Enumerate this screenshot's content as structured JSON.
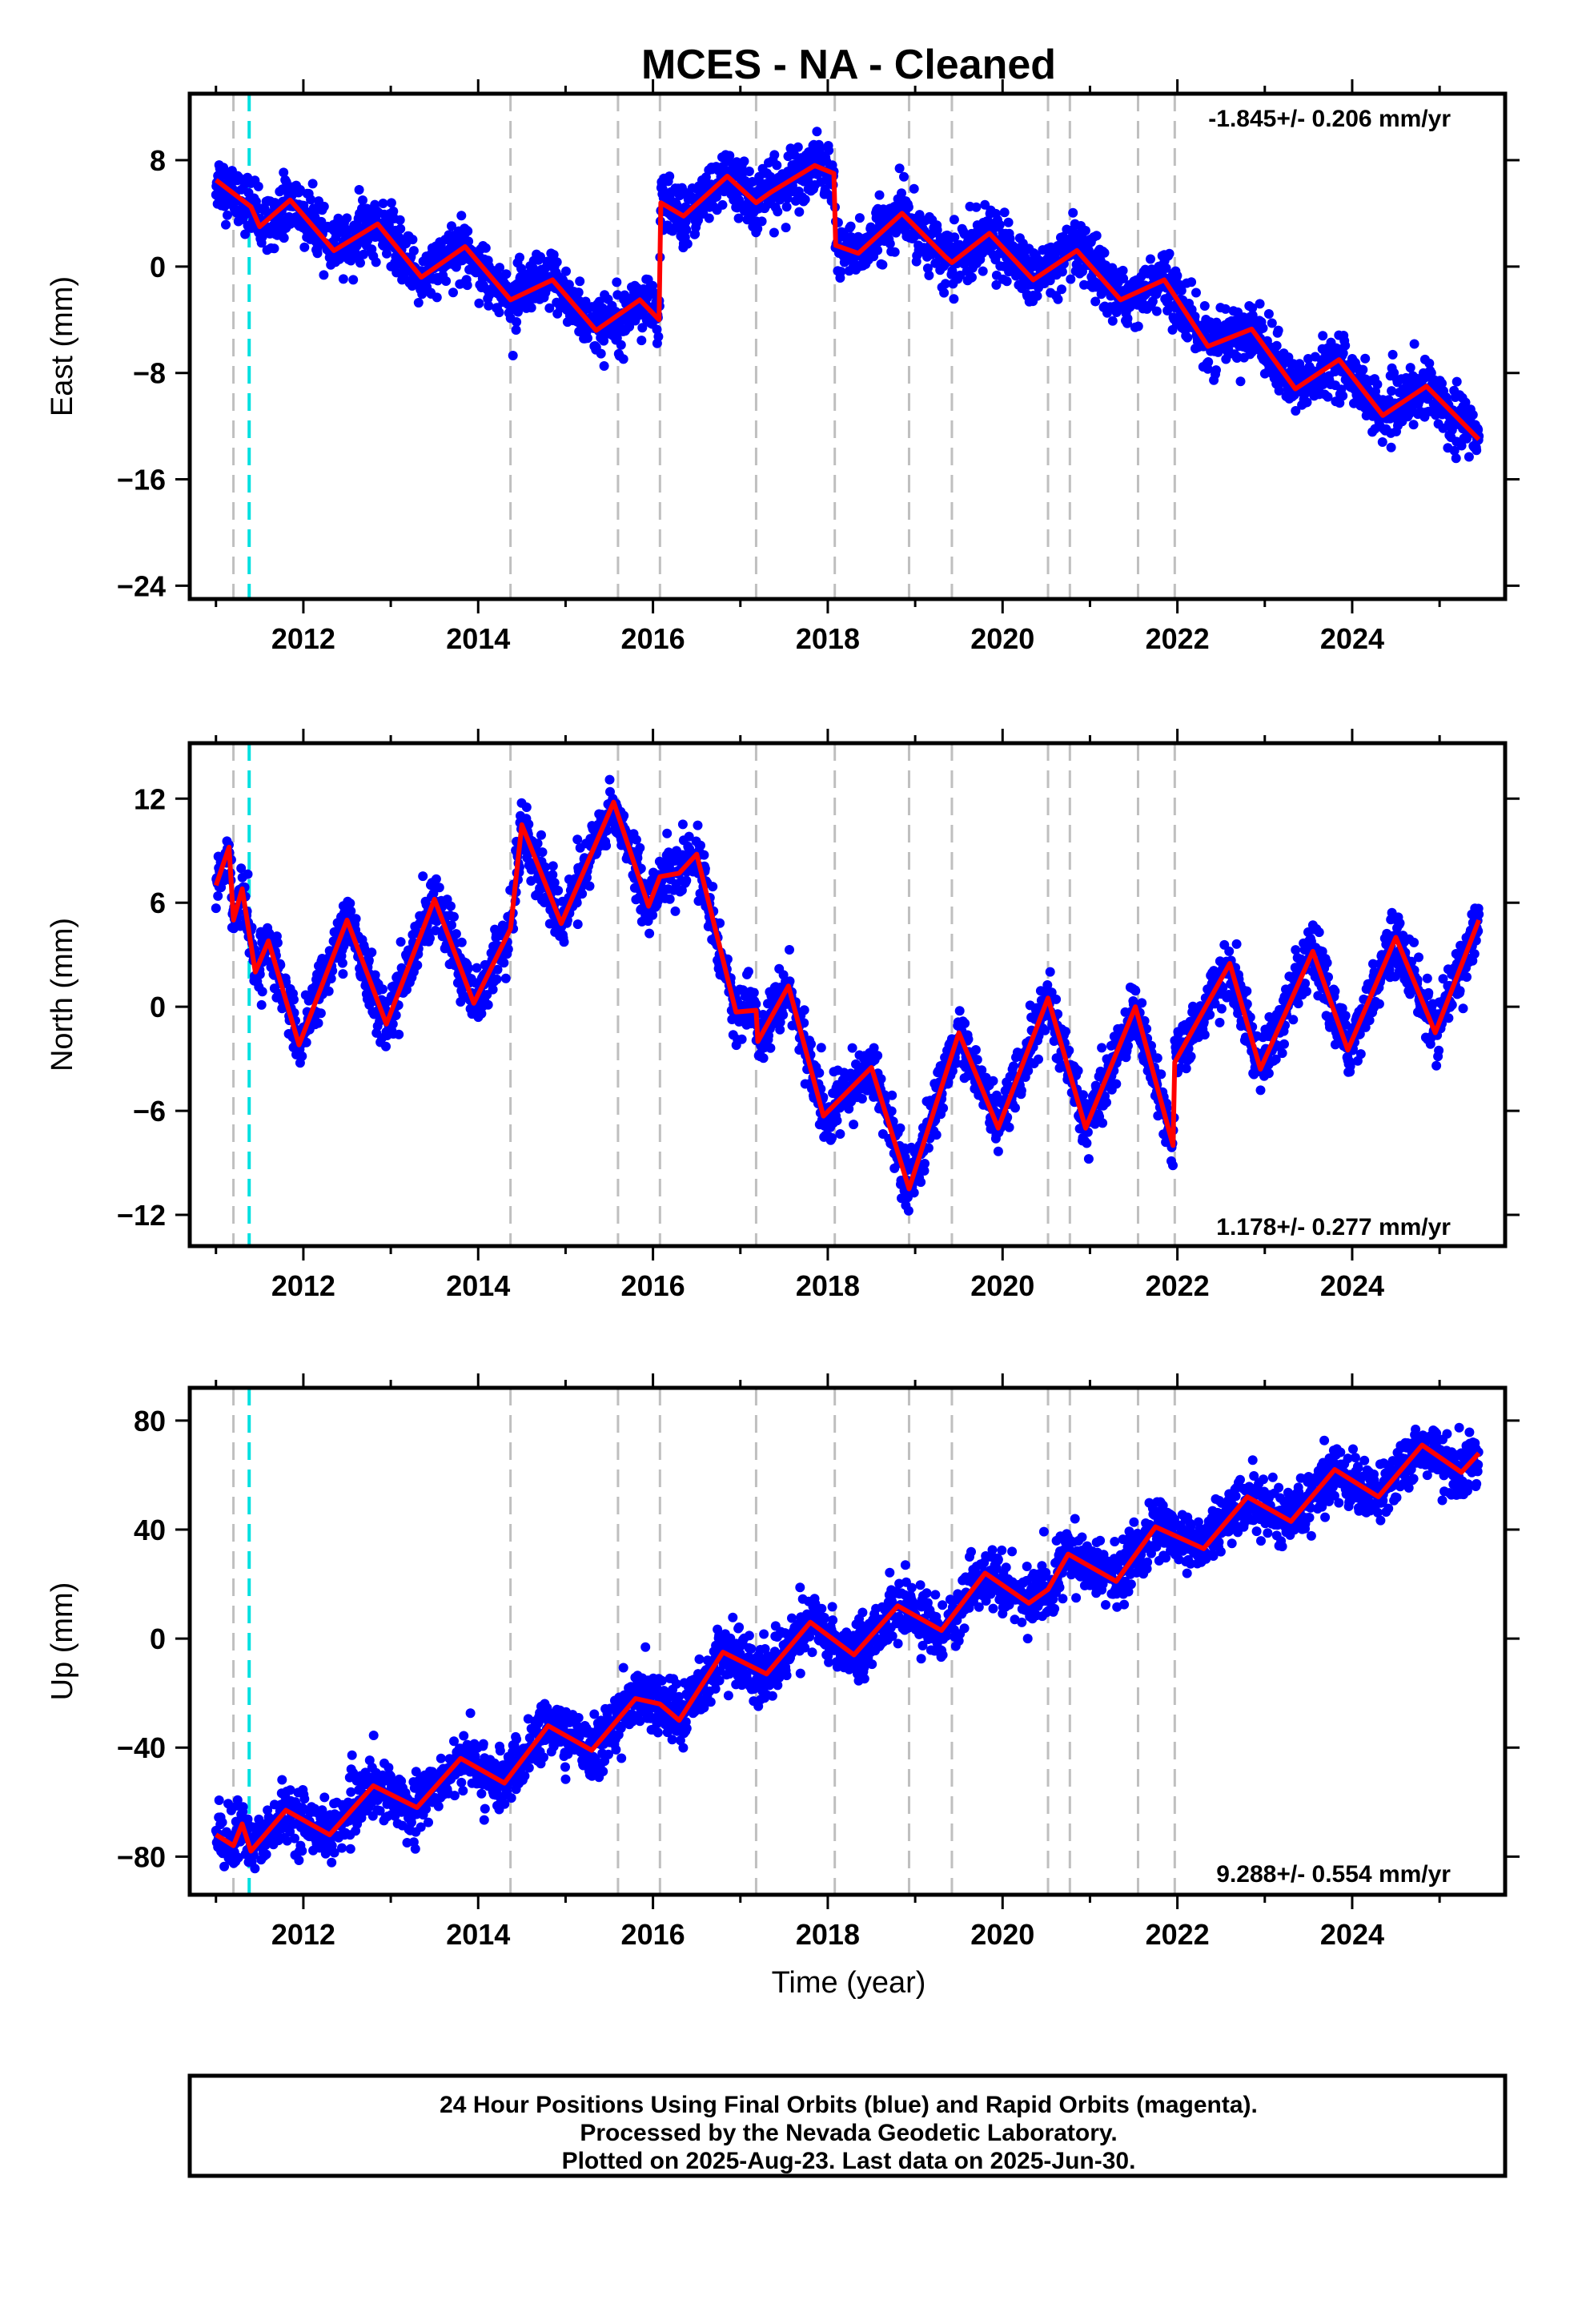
{
  "title": "MCES  - NA - Cleaned",
  "xlabel": "Time (year)",
  "footer": [
    "24 Hour Positions Using Final Orbits (blue) and Rapid Orbits (magenta).",
    "Processed by the Nevada Geodetic Laboratory.",
    "Plotted on 2025-Aug-23. Last data on 2025-Jun-30."
  ],
  "colors": {
    "points": "#0000ff",
    "model": "#ff0000",
    "equipment_change": "#bfbfbf",
    "event": "#00e0e0"
  },
  "equipment_changes": [
    2011.2,
    2014.37,
    2015.6,
    2016.08,
    2017.18,
    2018.08,
    2018.93,
    2019.42,
    2020.52,
    2020.77,
    2021.55,
    2021.97
  ],
  "events": [
    2011.38
  ],
  "chart_data": [
    {
      "type": "scatter",
      "name": "east",
      "ylabel": "East (mm)",
      "rate_label": "-1.845+/- 0.206 mm/yr",
      "xlim": [
        2010.7,
        2025.75
      ],
      "ylim": [
        -25,
        13
      ],
      "xticks": [
        2012,
        2014,
        2016,
        2018,
        2020,
        2022,
        2024
      ],
      "yticks": [
        8,
        0,
        -8,
        -16,
        -24
      ],
      "yticklabels": [
        "8",
        "0",
        "−8",
        "−16",
        "−24"
      ],
      "grid": false,
      "model_points": [
        [
          2011.0,
          6.5
        ],
        [
          2011.2,
          5.5
        ],
        [
          2011.4,
          4.5
        ],
        [
          2011.5,
          3.0
        ],
        [
          2011.85,
          5.0
        ],
        [
          2012.35,
          1.2
        ],
        [
          2012.85,
          3.2
        ],
        [
          2013.35,
          -0.8
        ],
        [
          2013.85,
          1.5
        ],
        [
          2014.37,
          -2.5
        ],
        [
          2014.85,
          -1.0
        ],
        [
          2015.35,
          -4.8
        ],
        [
          2015.85,
          -2.5
        ],
        [
          2016.07,
          -4.0
        ],
        [
          2016.09,
          4.8
        ],
        [
          2016.35,
          3.8
        ],
        [
          2016.85,
          6.8
        ],
        [
          2017.18,
          4.8
        ],
        [
          2017.35,
          5.6
        ],
        [
          2017.85,
          7.6
        ],
        [
          2018.07,
          7.0
        ],
        [
          2018.09,
          1.6
        ],
        [
          2018.35,
          1.0
        ],
        [
          2018.85,
          4.0
        ],
        [
          2019.35,
          0.7
        ],
        [
          2019.42,
          0.3
        ],
        [
          2019.85,
          2.5
        ],
        [
          2020.35,
          -1.0
        ],
        [
          2020.85,
          1.2
        ],
        [
          2021.35,
          -2.5
        ],
        [
          2021.85,
          -1.0
        ],
        [
          2022.35,
          -6.0
        ],
        [
          2022.85,
          -4.7
        ],
        [
          2023.35,
          -9.2
        ],
        [
          2023.85,
          -7.0
        ],
        [
          2024.35,
          -11.2
        ],
        [
          2024.85,
          -9.0
        ],
        [
          2025.45,
          -13.0
        ]
      ]
    },
    {
      "type": "scatter",
      "name": "north",
      "ylabel": "North (mm)",
      "rate_label": "1.178+/- 0.277 mm/yr",
      "xlim": [
        2010.7,
        2025.75
      ],
      "ylim": [
        -13.8,
        15.2
      ],
      "xticks": [
        2012,
        2014,
        2016,
        2018,
        2020,
        2022,
        2024
      ],
      "yticks": [
        12,
        6,
        0,
        -6,
        -12
      ],
      "yticklabels": [
        "12",
        "6",
        "0",
        "−6",
        "−12"
      ],
      "grid": false,
      "model_points": [
        [
          2011.0,
          7.0
        ],
        [
          2011.15,
          9.2
        ],
        [
          2011.2,
          5.0
        ],
        [
          2011.3,
          6.8
        ],
        [
          2011.45,
          2.0
        ],
        [
          2011.6,
          3.8
        ],
        [
          2011.95,
          -2.2
        ],
        [
          2012.5,
          5.0
        ],
        [
          2012.95,
          -1.0
        ],
        [
          2013.5,
          6.2
        ],
        [
          2013.95,
          0.2
        ],
        [
          2014.37,
          4.5
        ],
        [
          2014.5,
          10.5
        ],
        [
          2014.95,
          4.8
        ],
        [
          2015.55,
          11.8
        ],
        [
          2015.95,
          5.8
        ],
        [
          2016.08,
          7.5
        ],
        [
          2016.3,
          7.7
        ],
        [
          2016.5,
          8.8
        ],
        [
          2016.95,
          -0.3
        ],
        [
          2017.18,
          -0.2
        ],
        [
          2017.2,
          -2.0
        ],
        [
          2017.55,
          1.2
        ],
        [
          2017.95,
          -6.3
        ],
        [
          2018.5,
          -3.5
        ],
        [
          2018.93,
          -10.5
        ],
        [
          2019.5,
          -1.5
        ],
        [
          2019.95,
          -7.0
        ],
        [
          2020.52,
          0.5
        ],
        [
          2020.95,
          -7.0
        ],
        [
          2021.52,
          0.0
        ],
        [
          2021.95,
          -8.0
        ],
        [
          2021.97,
          -3.2
        ],
        [
          2022.6,
          2.5
        ],
        [
          2022.95,
          -3.6
        ],
        [
          2023.55,
          3.2
        ],
        [
          2023.95,
          -2.5
        ],
        [
          2024.5,
          4.0
        ],
        [
          2024.95,
          -1.5
        ],
        [
          2025.45,
          5.0
        ]
      ]
    },
    {
      "type": "scatter",
      "name": "up",
      "ylabel": "Up (mm)",
      "rate_label": "9.288+/- 0.554 mm/yr",
      "xlim": [
        2010.7,
        2025.75
      ],
      "ylim": [
        -94,
        92
      ],
      "xticks": [
        2012,
        2014,
        2016,
        2018,
        2020,
        2022,
        2024
      ],
      "yticks": [
        80,
        40,
        0,
        -40,
        -80
      ],
      "yticklabels": [
        "80",
        "40",
        "0",
        "−40",
        "−80"
      ],
      "grid": false,
      "model_points": [
        [
          2011.0,
          -72
        ],
        [
          2011.2,
          -76
        ],
        [
          2011.3,
          -68
        ],
        [
          2011.4,
          -78
        ],
        [
          2011.8,
          -63
        ],
        [
          2012.3,
          -72
        ],
        [
          2012.8,
          -54
        ],
        [
          2013.3,
          -62
        ],
        [
          2013.8,
          -44
        ],
        [
          2014.3,
          -53
        ],
        [
          2014.8,
          -32
        ],
        [
          2015.3,
          -41
        ],
        [
          2015.8,
          -22
        ],
        [
          2016.08,
          -24
        ],
        [
          2016.3,
          -30
        ],
        [
          2016.8,
          -5
        ],
        [
          2017.3,
          -13
        ],
        [
          2017.8,
          6
        ],
        [
          2018.3,
          -6
        ],
        [
          2018.8,
          12
        ],
        [
          2019.3,
          3
        ],
        [
          2019.8,
          24
        ],
        [
          2020.3,
          13
        ],
        [
          2020.52,
          18
        ],
        [
          2020.75,
          31
        ],
        [
          2021.3,
          21
        ],
        [
          2021.75,
          41
        ],
        [
          2022.3,
          33
        ],
        [
          2022.8,
          52
        ],
        [
          2023.3,
          43
        ],
        [
          2023.8,
          62
        ],
        [
          2024.3,
          52
        ],
        [
          2024.8,
          71
        ],
        [
          2025.25,
          61
        ],
        [
          2025.45,
          68
        ]
      ]
    }
  ]
}
